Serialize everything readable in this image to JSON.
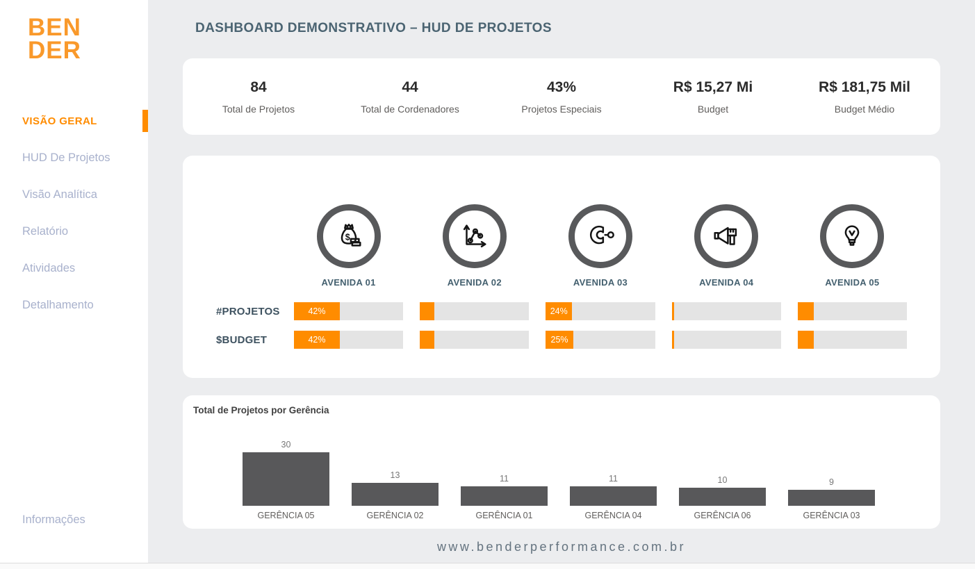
{
  "app": {
    "title": "DASHBOARD DEMONSTRATIVO – HUD DE PROJETOS"
  },
  "brand": {
    "logo_line1": "BEN",
    "logo_line2": "DER",
    "logo_color": "#F9992B"
  },
  "sidebar": {
    "items": [
      {
        "label": "VISÃO GERAL",
        "active": true
      },
      {
        "label": "HUD De Projetos",
        "active": false
      },
      {
        "label": "Visão Analítica",
        "active": false
      },
      {
        "label": "Relatório",
        "active": false
      },
      {
        "label": "Atividades",
        "active": false
      },
      {
        "label": "Detalhamento",
        "active": false
      }
    ],
    "bottom_item": {
      "label": "Informações"
    }
  },
  "kpis": [
    {
      "value": "84",
      "label": "Total de Projetos"
    },
    {
      "value": "44",
      "label": "Total de Cordenadores"
    },
    {
      "value": "43%",
      "label": "Projetos Especiais"
    },
    {
      "value": "R$ 15,27 Mi",
      "label": "Budget"
    },
    {
      "value": "R$ 181,75 Mil",
      "label": "Budget Médio"
    }
  ],
  "avenues": {
    "columns": [
      {
        "label": "AVENIDA 01",
        "icon": "money-bag-icon"
      },
      {
        "label": "AVENIDA 02",
        "icon": "line-chart-icon"
      },
      {
        "label": "AVENIDA 03",
        "icon": "magnet-icon"
      },
      {
        "label": "AVENIDA 04",
        "icon": "megaphone-icon"
      },
      {
        "label": "AVENIDA 05",
        "icon": "lightbulb-icon"
      }
    ],
    "rows": [
      {
        "label": "#PROJETOS",
        "bars": [
          {
            "pct": 42,
            "text": "42%"
          },
          {
            "pct": 13,
            "text": ""
          },
          {
            "pct": 24,
            "text": "24%"
          },
          {
            "pct": 2,
            "text": ""
          },
          {
            "pct": 15,
            "text": ""
          }
        ]
      },
      {
        "label": "$BUDGET",
        "bars": [
          {
            "pct": 42,
            "text": "42%"
          },
          {
            "pct": 13,
            "text": ""
          },
          {
            "pct": 25,
            "text": "25%"
          },
          {
            "pct": 2,
            "text": ""
          },
          {
            "pct": 15,
            "text": ""
          }
        ]
      }
    ]
  },
  "chart_data": {
    "type": "bar",
    "title": "Total de Projetos por Gerência",
    "categories": [
      "GERÊNCIA 05",
      "GERÊNCIA 02",
      "GERÊNCIA 01",
      "GERÊNCIA 04",
      "GERÊNCIA 06",
      "GERÊNCIA 03"
    ],
    "values": [
      30,
      13,
      11,
      11,
      10,
      9
    ],
    "xlabel": "",
    "ylabel": "",
    "ylim": [
      0,
      30
    ],
    "grid": false,
    "legend": false,
    "bar_color": "#58585A",
    "value_labels_shown": true
  },
  "footer": {
    "url": "www.benderperformance.com.br"
  },
  "colors": {
    "accent_orange": "#FF8C00",
    "logo_orange": "#F9992B",
    "title_slate": "#4B6472",
    "sidebar_inactive": "#A8B1CC",
    "bar_track": "#E4E4E4",
    "ring_gray": "#58595B",
    "chart_bar": "#58585A",
    "main_bg": "#ECEDEF"
  }
}
